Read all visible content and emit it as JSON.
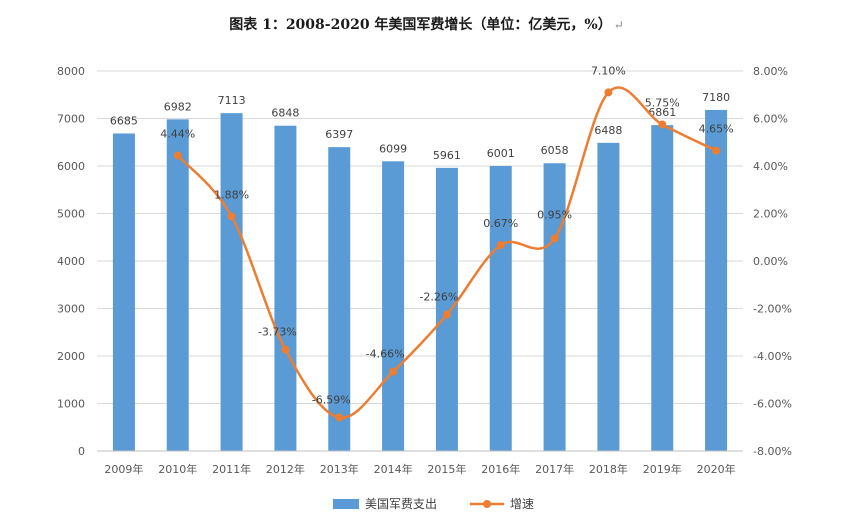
{
  "title": "图表 1：2008-2020 年美国军费增长（单位：亿美元，%）",
  "title_mark": "↵",
  "chart_data": {
    "type": "bar+line",
    "title": "图表 1：2008-2020 年美国军费增长（单位：亿美元，%）",
    "categories": [
      "2009年",
      "2010年",
      "2011年",
      "2012年",
      "2013年",
      "2014年",
      "2015年",
      "2016年",
      "2017年",
      "2018年",
      "2019年",
      "2020年"
    ],
    "series": [
      {
        "name": "美国军费支出",
        "type": "bar",
        "axis": "left",
        "color": "#5b9bd5",
        "values": [
          6685,
          6982,
          7113,
          6848,
          6397,
          6099,
          5961,
          6001,
          6058,
          6488,
          6861,
          7180
        ],
        "labels": [
          "6685",
          "6982",
          "7113",
          "6848",
          "6397",
          "6099",
          "5961",
          "6001",
          "6058",
          "6488",
          "6861",
          "7180"
        ]
      },
      {
        "name": "增速",
        "type": "line",
        "axis": "right",
        "color": "#ed7d31",
        "smooth": true,
        "values": [
          null,
          4.44,
          1.88,
          -3.73,
          -6.59,
          -4.66,
          -2.26,
          0.67,
          0.95,
          7.1,
          5.75,
          4.65
        ],
        "labels": [
          null,
          "4.44%",
          "1.88%",
          "-3.73%",
          "-6.59%",
          "-4.66%",
          "-2.26%",
          "0.67%",
          "0.95%",
          "7.10%",
          "5.75%",
          "4.65%"
        ]
      }
    ],
    "y_left": {
      "min": 0,
      "max": 8000,
      "step": 1000,
      "ticks": [
        "0",
        "1000",
        "2000",
        "3000",
        "4000",
        "5000",
        "6000",
        "7000",
        "8000"
      ]
    },
    "y_right": {
      "min": -8,
      "max": 8,
      "step": 2,
      "ticks": [
        "-8.00%",
        "-6.00%",
        "-4.00%",
        "-2.00%",
        "0.00%",
        "2.00%",
        "4.00%",
        "6.00%",
        "8.00%"
      ]
    },
    "legend": {
      "position": "bottom",
      "items": [
        "美国军费支出",
        "增速"
      ]
    }
  }
}
